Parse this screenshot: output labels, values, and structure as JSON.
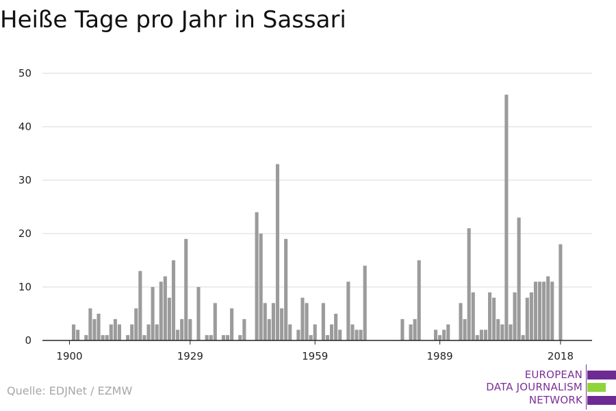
{
  "source": "Quelle: EDJNet / EZMW",
  "logo": {
    "lines": [
      "EUROPEAN",
      "DATA JOURNALISM",
      "NETWORK"
    ]
  },
  "colors": {
    "bar": "#9b9b9b",
    "grid": "#d9d9d9",
    "axis": "#222222",
    "logo_purple": "#6d2a93",
    "logo_green": "#8fd43a"
  },
  "chart_data": {
    "type": "bar",
    "title": "Heiße Tage pro Jahr in Sassari",
    "xlabel": "",
    "ylabel": "",
    "ylim": [
      0,
      50
    ],
    "yticks": [
      0,
      10,
      20,
      30,
      40,
      50
    ],
    "xticks": [
      1900,
      1929,
      1959,
      1989,
      2018
    ],
    "grid": true,
    "x": [
      1900,
      1901,
      1902,
      1903,
      1904,
      1905,
      1906,
      1907,
      1908,
      1909,
      1910,
      1911,
      1912,
      1913,
      1914,
      1915,
      1916,
      1917,
      1918,
      1919,
      1920,
      1921,
      1922,
      1923,
      1924,
      1925,
      1926,
      1927,
      1928,
      1929,
      1930,
      1931,
      1932,
      1933,
      1934,
      1935,
      1936,
      1937,
      1938,
      1939,
      1940,
      1941,
      1942,
      1943,
      1944,
      1945,
      1946,
      1947,
      1948,
      1949,
      1950,
      1951,
      1952,
      1953,
      1954,
      1955,
      1956,
      1957,
      1958,
      1959,
      1960,
      1961,
      1962,
      1963,
      1964,
      1965,
      1966,
      1967,
      1968,
      1969,
      1970,
      1971,
      1972,
      1973,
      1974,
      1975,
      1976,
      1977,
      1978,
      1979,
      1980,
      1981,
      1982,
      1983,
      1984,
      1985,
      1986,
      1987,
      1988,
      1989,
      1990,
      1991,
      1992,
      1993,
      1994,
      1995,
      1996,
      1997,
      1998,
      1999,
      2000,
      2001,
      2002,
      2003,
      2004,
      2005,
      2006,
      2007,
      2008,
      2009,
      2010,
      2011,
      2012,
      2013,
      2014,
      2015,
      2016,
      2017,
      2018
    ],
    "values": [
      0,
      3,
      2,
      0,
      1,
      6,
      4,
      5,
      1,
      1,
      3,
      4,
      3,
      0,
      1,
      3,
      6,
      13,
      1,
      3,
      10,
      3,
      11,
      12,
      8,
      15,
      2,
      4,
      19,
      4,
      0,
      10,
      0,
      1,
      1,
      7,
      0,
      1,
      1,
      6,
      0,
      1,
      4,
      0,
      0,
      24,
      20,
      7,
      4,
      7,
      33,
      6,
      19,
      3,
      0,
      2,
      8,
      7,
      1,
      3,
      0,
      7,
      1,
      3,
      5,
      2,
      0,
      11,
      3,
      2,
      2,
      14,
      0,
      0,
      0,
      0,
      0,
      0,
      0,
      0,
      4,
      0,
      3,
      4,
      15,
      0,
      0,
      0,
      2,
      1,
      2,
      3,
      0,
      0,
      7,
      4,
      21,
      9,
      1,
      2,
      2,
      9,
      8,
      4,
      3,
      46,
      3,
      9,
      23,
      1,
      8,
      9,
      11,
      11,
      11,
      12,
      11,
      0,
      18
    ]
  }
}
